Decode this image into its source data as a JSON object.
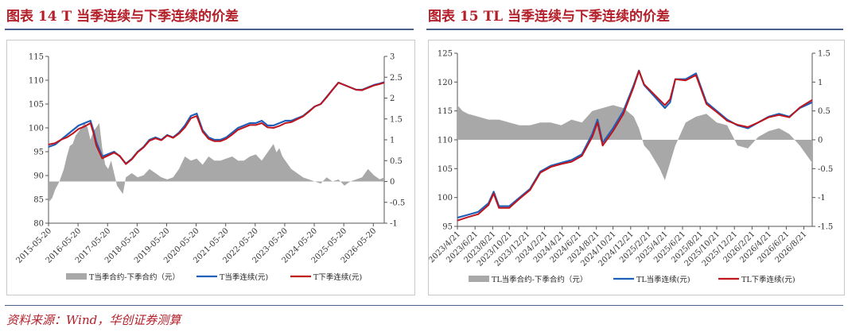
{
  "panels": {
    "left": {
      "title": "图表 14 T 当季连续与下季连续的价差"
    },
    "right": {
      "title": "图表 15 TL 当季连续与下季连续的价差"
    }
  },
  "source_note": "资料来源：Wind，华创证券测算",
  "colors": {
    "spread_fill": "#a8a8a8",
    "current": "#1f5fb8",
    "next": "#c0141c",
    "title": "#b3202a"
  },
  "chart_data": [
    {
      "type": "area-line-combo",
      "title": "图表 14 T 当季连续与下季连续的价差",
      "left_axis": {
        "ylim": [
          80,
          115
        ],
        "ticks": [
          80,
          85,
          90,
          95,
          100,
          105,
          110,
          115
        ]
      },
      "right_axis": {
        "ylim": [
          -1,
          3
        ],
        "ticks": [
          -1,
          -0.5,
          0,
          0.5,
          1,
          1.5,
          2,
          2.5,
          3
        ],
        "tick_labels": [
          "-1",
          "-0.5",
          "0",
          "0.5",
          "1",
          "1.5",
          "2",
          "2.5",
          "3"
        ]
      },
      "x_start": 2015.38,
      "x_end": 2026.75,
      "x_ticks": [
        2015.38,
        2016.38,
        2017.38,
        2018.38,
        2019.38,
        2020.38,
        2021.38,
        2022.38,
        2023.38,
        2024.38,
        2025.38,
        2026.38
      ],
      "x_tick_labels": [
        "2015-05-20",
        "2016-05-20",
        "2017-05-20",
        "2018-05-20",
        "2019-05-20",
        "2020-05-20",
        "2021-05-20",
        "2022-05-20",
        "2023-05-20",
        "2024-05-20",
        "2025-05-20",
        "2026-05-20"
      ],
      "series": [
        {
          "name": "T当季合约-下季合约（元）",
          "kind": "area",
          "axis": "right",
          "x": [
            2015.38,
            2015.5,
            2015.6,
            2015.75,
            2015.9,
            2016.0,
            2016.1,
            2016.2,
            2016.3,
            2016.4,
            2016.5,
            2016.6,
            2016.7,
            2016.8,
            2016.9,
            2017.0,
            2017.1,
            2017.2,
            2017.3,
            2017.4,
            2017.5,
            2017.6,
            2017.7,
            2017.8,
            2017.9,
            2018.0,
            2018.2,
            2018.4,
            2018.6,
            2018.8,
            2019.0,
            2019.2,
            2019.4,
            2019.6,
            2019.8,
            2020.0,
            2020.2,
            2020.4,
            2020.6,
            2020.8,
            2021.0,
            2021.2,
            2021.4,
            2021.6,
            2021.8,
            2022.0,
            2022.2,
            2022.4,
            2022.6,
            2022.8,
            2023.0,
            2023.1,
            2023.2,
            2023.3,
            2023.4,
            2023.5,
            2023.6,
            2023.8,
            2024.0,
            2024.2,
            2024.4,
            2024.6,
            2024.8,
            2025.0,
            2025.2,
            2025.4,
            2025.6,
            2025.8,
            2026.0,
            2026.2,
            2026.4,
            2026.6,
            2026.75
          ],
          "values": [
            -0.5,
            -0.4,
            -0.2,
            0.0,
            0.3,
            0.6,
            0.85,
            0.9,
            1.1,
            1.2,
            1.3,
            1.4,
            1.3,
            1.0,
            1.2,
            1.3,
            1.4,
            0.8,
            0.4,
            0.3,
            0.5,
            0.2,
            -0.1,
            -0.2,
            -0.3,
            0.1,
            0.2,
            0.1,
            0.15,
            0.3,
            0.2,
            0.1,
            0.05,
            0.1,
            0.3,
            0.6,
            0.5,
            0.55,
            0.4,
            0.6,
            0.5,
            0.5,
            0.55,
            0.6,
            0.5,
            0.5,
            0.6,
            0.65,
            0.5,
            0.7,
            0.9,
            0.7,
            0.8,
            0.6,
            0.5,
            0.4,
            0.3,
            0.2,
            0.1,
            0.05,
            0.0,
            -0.05,
            0.1,
            0.0,
            0.05,
            -0.1,
            0.0,
            0.05,
            0.1,
            0.3,
            0.15,
            0.05,
            0.1
          ]
        },
        {
          "name": "T当季连续(元)",
          "kind": "line",
          "axis": "left",
          "x": [
            2015.38,
            2015.6,
            2015.8,
            2016.0,
            2016.2,
            2016.4,
            2016.6,
            2016.8,
            2016.9,
            2017.0,
            2017.2,
            2017.4,
            2017.6,
            2017.8,
            2018.0,
            2018.2,
            2018.4,
            2018.6,
            2018.8,
            2019.0,
            2019.2,
            2019.4,
            2019.6,
            2019.8,
            2020.0,
            2020.2,
            2020.4,
            2020.6,
            2020.8,
            2021.0,
            2021.2,
            2021.4,
            2021.6,
            2021.8,
            2022.0,
            2022.2,
            2022.4,
            2022.6,
            2022.8,
            2023.0,
            2023.2,
            2023.4,
            2023.6,
            2023.8,
            2024.0,
            2024.2,
            2024.4,
            2024.6,
            2024.8,
            2025.0,
            2025.2,
            2025.4,
            2025.6,
            2025.8,
            2026.0,
            2026.2,
            2026.4,
            2026.6,
            2026.75
          ],
          "values": [
            96.0,
            96.5,
            97.5,
            98.5,
            99.5,
            100.5,
            101.0,
            101.5,
            99.5,
            97.0,
            94.0,
            94.5,
            95.0,
            94.0,
            92.5,
            93.5,
            95.0,
            96.0,
            97.5,
            98.0,
            97.5,
            98.5,
            98.0,
            99.0,
            100.5,
            102.5,
            103.0,
            99.5,
            98.0,
            97.5,
            97.5,
            98.0,
            99.0,
            100.0,
            100.5,
            101.0,
            101.0,
            101.5,
            100.5,
            100.5,
            101.0,
            101.5,
            101.5,
            102.0,
            102.5,
            103.5,
            104.5,
            105.0,
            106.5,
            108.0,
            109.5,
            109.0,
            108.5,
            108.0,
            108.0,
            108.5,
            109.0,
            109.3,
            109.6
          ]
        },
        {
          "name": "T下季连续(元)",
          "kind": "line",
          "axis": "left",
          "x": [
            2015.38,
            2015.6,
            2015.8,
            2016.0,
            2016.2,
            2016.4,
            2016.6,
            2016.8,
            2016.9,
            2017.0,
            2017.2,
            2017.4,
            2017.6,
            2017.8,
            2018.0,
            2018.2,
            2018.4,
            2018.6,
            2018.8,
            2019.0,
            2019.2,
            2019.4,
            2019.6,
            2019.8,
            2020.0,
            2020.2,
            2020.4,
            2020.6,
            2020.8,
            2021.0,
            2021.2,
            2021.4,
            2021.6,
            2021.8,
            2022.0,
            2022.2,
            2022.4,
            2022.6,
            2022.8,
            2023.0,
            2023.2,
            2023.4,
            2023.6,
            2023.8,
            2024.0,
            2024.2,
            2024.4,
            2024.6,
            2024.8,
            2025.0,
            2025.2,
            2025.4,
            2025.6,
            2025.8,
            2026.0,
            2026.2,
            2026.4,
            2026.6,
            2026.75
          ],
          "values": [
            96.5,
            96.8,
            97.5,
            98.0,
            98.8,
            99.8,
            100.3,
            101.0,
            99.0,
            96.3,
            93.6,
            94.2,
            94.8,
            94.1,
            92.4,
            93.4,
            94.9,
            95.9,
            97.3,
            97.8,
            97.4,
            98.4,
            97.9,
            98.8,
            100.1,
            102.0,
            102.5,
            99.2,
            97.7,
            97.2,
            97.2,
            97.7,
            98.6,
            99.6,
            100.1,
            100.6,
            100.6,
            101.0,
            100.1,
            100.0,
            100.4,
            101.0,
            101.2,
            101.8,
            102.4,
            103.4,
            104.5,
            105.0,
            106.4,
            108.0,
            109.5,
            109.0,
            108.5,
            108.0,
            107.9,
            108.4,
            108.9,
            109.2,
            109.5
          ]
        }
      ]
    },
    {
      "type": "area-line-combo",
      "title": "图表 15 TL 当季连续与下季连续的价差",
      "left_axis": {
        "ylim": [
          95,
          125
        ],
        "ticks": [
          95,
          100,
          105,
          110,
          115,
          120,
          125
        ]
      },
      "right_axis": {
        "ylim": [
          -1.5,
          1.5
        ],
        "ticks": [
          -1.5,
          -1,
          -0.5,
          0,
          0.5,
          1,
          1.5
        ],
        "tick_labels": [
          "-1.5",
          "-1",
          "-0.5",
          "0",
          "0.5",
          "1",
          "1.5"
        ]
      },
      "x_start": 2023.3,
      "x_end": 2026.72,
      "x_ticks": [
        2023.3,
        2023.47,
        2023.64,
        2023.8,
        2023.97,
        2024.14,
        2024.31,
        2024.47,
        2024.64,
        2024.8,
        2024.97,
        2025.14,
        2025.3,
        2025.47,
        2025.64,
        2025.8,
        2025.97,
        2026.14,
        2026.3,
        2026.47,
        2026.64
      ],
      "x_tick_labels": [
        "2023/4/21",
        "2023/6/21",
        "2023/8/21",
        "2023/10/21",
        "2023/12/21",
        "2024/2/21",
        "2024/4/21",
        "2024/6/21",
        "2024/8/21",
        "2024/10/21",
        "2024/12/21",
        "2025/2/21",
        "2025/4/21",
        "2025/6/21",
        "2025/8/21",
        "2025/10/21",
        "2025/12/21",
        "2026/2/21",
        "2026/4/21",
        "2026/6/21",
        "2026/8/21"
      ],
      "series": [
        {
          "name": "TL当季合约-下季合约（元）",
          "kind": "area",
          "axis": "right",
          "x": [
            2023.3,
            2023.35,
            2023.4,
            2023.5,
            2023.6,
            2023.7,
            2023.8,
            2023.9,
            2024.0,
            2024.1,
            2024.2,
            2024.3,
            2024.4,
            2024.5,
            2024.6,
            2024.7,
            2024.8,
            2024.9,
            2025.0,
            2025.05,
            2025.1,
            2025.15,
            2025.2,
            2025.25,
            2025.3,
            2025.4,
            2025.5,
            2025.6,
            2025.7,
            2025.8,
            2025.9,
            2026.0,
            2026.1,
            2026.2,
            2026.3,
            2026.4,
            2026.5,
            2026.6,
            2026.72
          ],
          "values": [
            0.6,
            0.5,
            0.45,
            0.4,
            0.35,
            0.35,
            0.3,
            0.25,
            0.25,
            0.3,
            0.3,
            0.25,
            0.35,
            0.3,
            0.5,
            0.55,
            0.6,
            0.55,
            0.4,
            0.2,
            -0.1,
            -0.2,
            -0.35,
            -0.5,
            -0.7,
            -0.1,
            0.3,
            0.4,
            0.45,
            0.3,
            0.25,
            -0.1,
            -0.15,
            0.05,
            0.15,
            0.2,
            0.1,
            -0.1,
            -0.4
          ]
        },
        {
          "name": "TL当季连续(元)",
          "kind": "line",
          "axis": "left",
          "x": [
            2023.3,
            2023.4,
            2023.5,
            2023.6,
            2023.65,
            2023.7,
            2023.8,
            2023.9,
            2024.0,
            2024.1,
            2024.2,
            2024.3,
            2024.4,
            2024.5,
            2024.6,
            2024.65,
            2024.7,
            2024.8,
            2024.9,
            2025.0,
            2025.05,
            2025.1,
            2025.2,
            2025.3,
            2025.35,
            2025.4,
            2025.5,
            2025.6,
            2025.7,
            2025.8,
            2025.9,
            2026.0,
            2026.1,
            2026.2,
            2026.3,
            2026.4,
            2026.5,
            2026.6,
            2026.72
          ],
          "values": [
            96.5,
            97.0,
            97.5,
            99.0,
            101.0,
            98.5,
            98.5,
            100.0,
            101.5,
            104.5,
            105.5,
            106.0,
            106.5,
            107.5,
            111.0,
            113.5,
            109.5,
            112.0,
            115.0,
            119.5,
            122.0,
            119.5,
            117.5,
            115.5,
            116.5,
            120.5,
            120.5,
            121.5,
            116.5,
            115.0,
            113.5,
            112.5,
            112.0,
            113.0,
            114.0,
            114.5,
            114.0,
            115.5,
            116.5
          ]
        },
        {
          "name": "TL下季连续(元)",
          "kind": "line",
          "axis": "left",
          "x": [
            2023.3,
            2023.4,
            2023.5,
            2023.6,
            2023.65,
            2023.7,
            2023.8,
            2023.9,
            2024.0,
            2024.1,
            2024.2,
            2024.3,
            2024.4,
            2024.5,
            2024.6,
            2024.65,
            2024.7,
            2024.8,
            2024.9,
            2025.0,
            2025.05,
            2025.1,
            2025.2,
            2025.3,
            2025.35,
            2025.4,
            2025.5,
            2025.6,
            2025.7,
            2025.8,
            2025.9,
            2026.0,
            2026.1,
            2026.2,
            2026.3,
            2026.4,
            2026.5,
            2026.6,
            2026.72
          ],
          "values": [
            96.0,
            96.6,
            97.1,
            98.7,
            100.7,
            98.2,
            98.2,
            99.8,
            101.3,
            104.3,
            105.3,
            105.8,
            106.2,
            107.2,
            110.5,
            113.0,
            109.0,
            111.5,
            114.5,
            119.2,
            121.9,
            119.6,
            117.8,
            116.0,
            117.0,
            120.5,
            120.3,
            121.2,
            116.2,
            114.8,
            113.3,
            112.6,
            112.2,
            113.0,
            113.9,
            114.3,
            113.9,
            115.6,
            116.9
          ]
        }
      ]
    }
  ]
}
